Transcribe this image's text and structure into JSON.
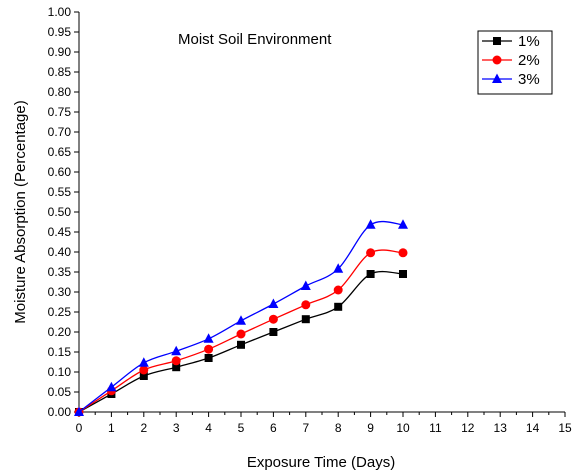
{
  "chart_data": {
    "type": "line",
    "title": "Moist Soil Environment",
    "xlabel": "Exposure Time (Days)",
    "ylabel": "Moisture Absorption (Percentage)",
    "xlim": [
      0,
      15
    ],
    "ylim": [
      0,
      1.0
    ],
    "x_ticks": [
      "0",
      "1",
      "2",
      "3",
      "4",
      "5",
      "6",
      "7",
      "8",
      "9",
      "10",
      "11",
      "12",
      "13",
      "14",
      "15"
    ],
    "y_ticks": [
      "0.00",
      "0.05",
      "0.10",
      "0.15",
      "0.20",
      "0.25",
      "0.30",
      "0.35",
      "0.40",
      "0.45",
      "0.50",
      "0.55",
      "0.60",
      "0.65",
      "0.70",
      "0.75",
      "0.80",
      "0.85",
      "0.90",
      "0.95",
      "1.00"
    ],
    "grid": false,
    "legend_position": "top-right",
    "x": [
      0,
      1,
      2,
      3,
      4,
      5,
      6,
      7,
      8,
      9,
      10
    ],
    "series": [
      {
        "name": "1%",
        "marker": "square",
        "color": "#000000",
        "values": [
          0.0,
          0.045,
          0.09,
          0.112,
          0.135,
          0.168,
          0.2,
          0.232,
          0.263,
          0.345,
          0.345
        ]
      },
      {
        "name": "2%",
        "marker": "circle",
        "color": "#ff0000",
        "values": [
          0.0,
          0.053,
          0.105,
          0.128,
          0.157,
          0.195,
          0.232,
          0.268,
          0.305,
          0.398,
          0.398
        ]
      },
      {
        "name": "3%",
        "marker": "triangle",
        "color": "#0000ff",
        "values": [
          0.0,
          0.062,
          0.123,
          0.152,
          0.183,
          0.228,
          0.27,
          0.315,
          0.358,
          0.468,
          0.468
        ]
      }
    ]
  }
}
